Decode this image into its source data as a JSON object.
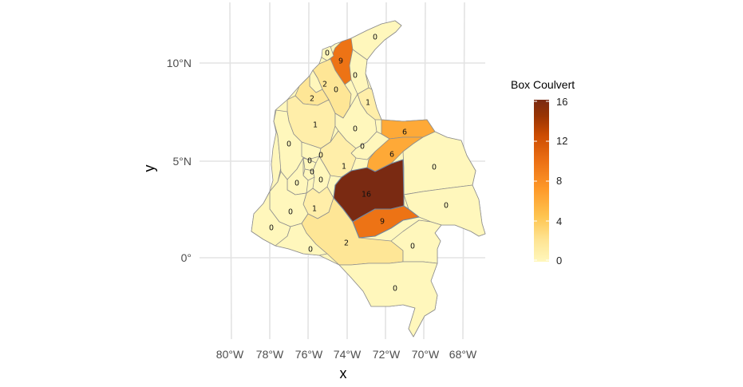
{
  "map": {
    "xlabel": "x",
    "ylabel": "y",
    "x_ticks": [
      "80°W",
      "78°W",
      "76°W",
      "74°W",
      "72°W",
      "70°W",
      "68°W"
    ],
    "y_ticks": [
      "0°",
      "5°N",
      "10°N"
    ],
    "legend": {
      "title": "Box Coulvert",
      "ticks": [
        "0",
        "4",
        "8",
        "12",
        "16"
      ],
      "range": [
        0,
        16
      ],
      "colors": [
        "#fff7bc",
        "#fee391",
        "#fec44f",
        "#fe9929",
        "#ec7014",
        "#cc4c02",
        "#8c2d04",
        "#7a2a12"
      ]
    },
    "regions": [
      {
        "id": "la-guajira",
        "value": 0
      },
      {
        "id": "magdalena",
        "value": 9
      },
      {
        "id": "atlantico",
        "value": 0
      },
      {
        "id": "cesar",
        "value": 0
      },
      {
        "id": "bolivar",
        "value": 2
      },
      {
        "id": "sucre",
        "value": 0
      },
      {
        "id": "cordoba",
        "value": 2
      },
      {
        "id": "norte-de-santander",
        "value": 1
      },
      {
        "id": "antioquia",
        "value": 1
      },
      {
        "id": "santander",
        "value": 0
      },
      {
        "id": "arauca",
        "value": 6
      },
      {
        "id": "boyaca",
        "value": 0
      },
      {
        "id": "casanare",
        "value": 6
      },
      {
        "id": "choco",
        "value": 0
      },
      {
        "id": "caldas",
        "value": 0
      },
      {
        "id": "risaralda",
        "value": 0
      },
      {
        "id": "cundinamarca",
        "value": 1
      },
      {
        "id": "quindio",
        "value": 0
      },
      {
        "id": "tolima",
        "value": 0
      },
      {
        "id": "valle",
        "value": 0
      },
      {
        "id": "vichada",
        "value": 0
      },
      {
        "id": "meta",
        "value": 16
      },
      {
        "id": "huila",
        "value": 1
      },
      {
        "id": "cauca",
        "value": 0
      },
      {
        "id": "guainia",
        "value": 0
      },
      {
        "id": "guaviare",
        "value": 9
      },
      {
        "id": "narino",
        "value": 0
      },
      {
        "id": "caqueta",
        "value": 2
      },
      {
        "id": "putumayo",
        "value": 0
      },
      {
        "id": "vaupes",
        "value": 0
      },
      {
        "id": "amazonas",
        "value": 0
      }
    ]
  }
}
